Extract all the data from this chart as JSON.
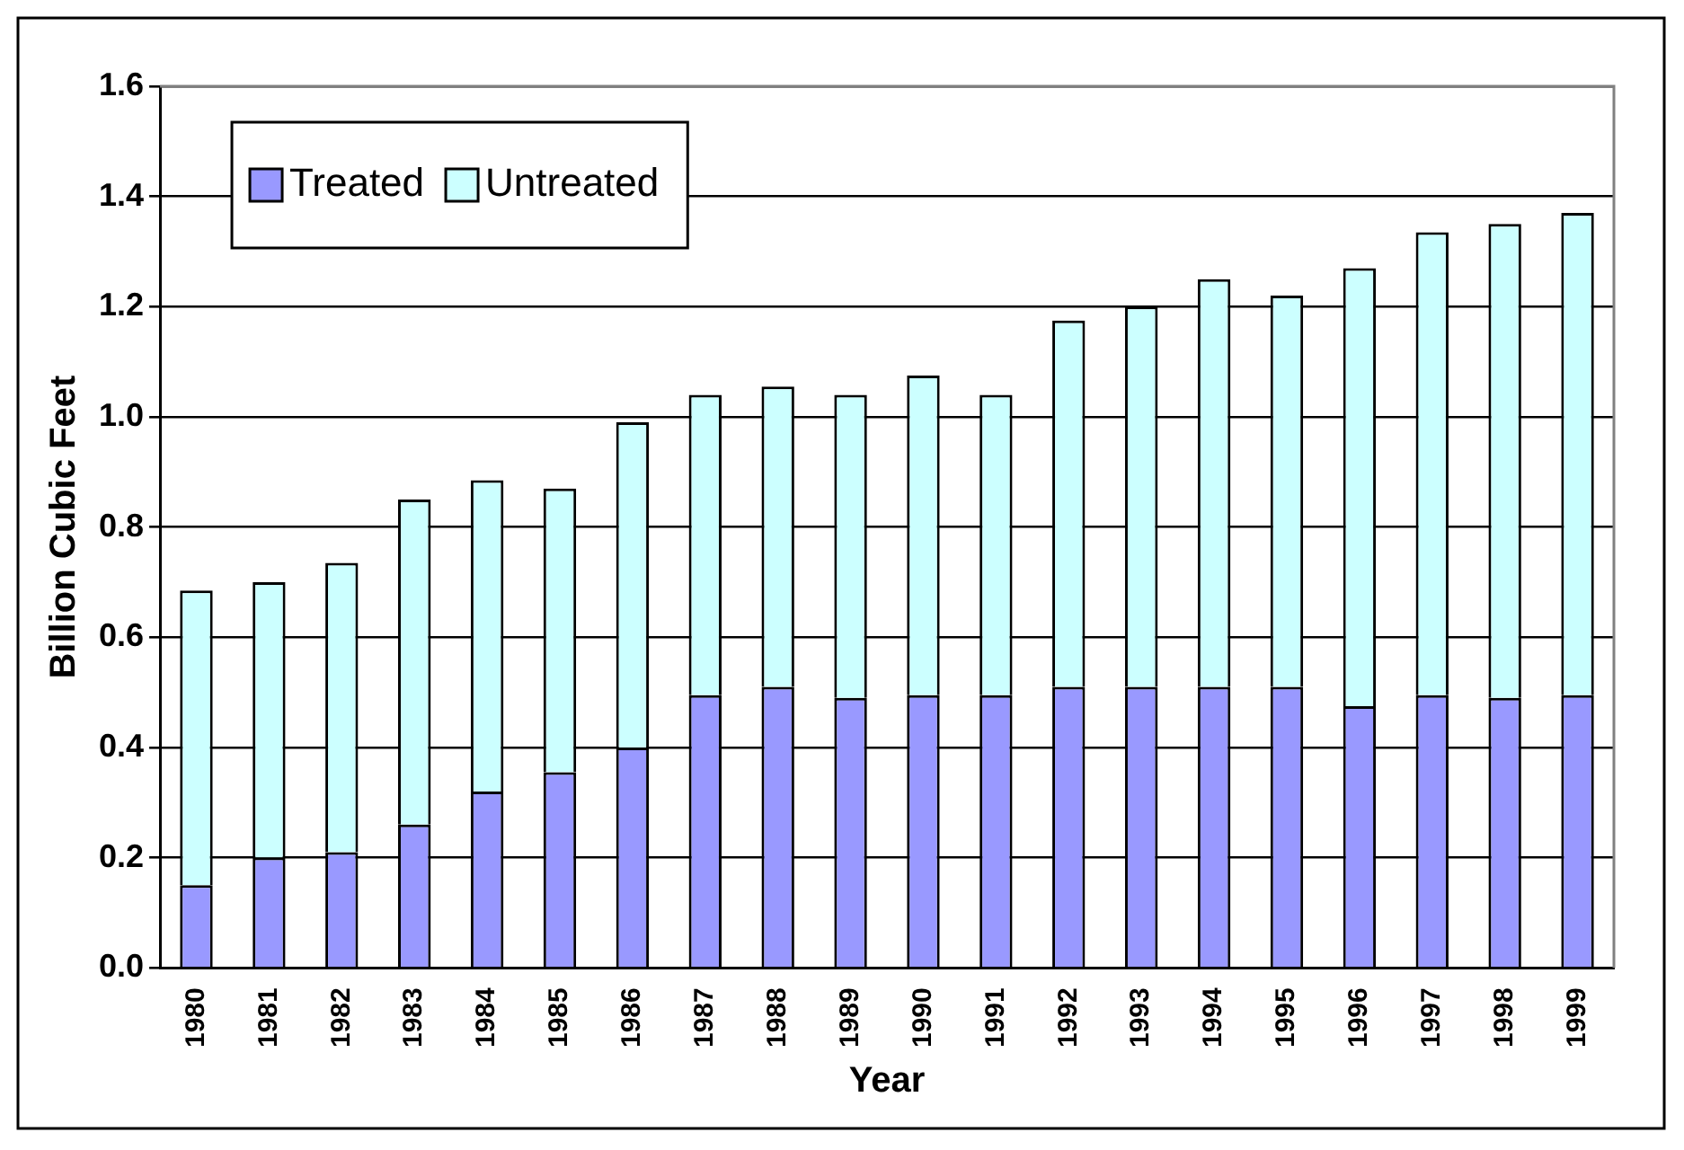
{
  "chart_data": {
    "type": "bar",
    "stacked": true,
    "xlabel": "Year",
    "ylabel": "Billion Cubic Feet",
    "categories": [
      "1980",
      "1981",
      "1982",
      "1983",
      "1984",
      "1985",
      "1986",
      "1987",
      "1988",
      "1989",
      "1990",
      "1991",
      "1992",
      "1993",
      "1994",
      "1995",
      "1996",
      "1997",
      "1998",
      "1999"
    ],
    "series": [
      {
        "name": "Treated",
        "color": "#9999ff",
        "values": [
          0.15,
          0.2,
          0.21,
          0.26,
          0.32,
          0.355,
          0.4,
          0.495,
          0.51,
          0.49,
          0.495,
          0.495,
          0.51,
          0.51,
          0.51,
          0.51,
          0.475,
          0.495,
          0.49,
          0.495
        ]
      },
      {
        "name": "Untreated",
        "color": "#ccffff",
        "values": [
          0.535,
          0.5,
          0.525,
          0.59,
          0.565,
          0.515,
          0.59,
          0.545,
          0.545,
          0.55,
          0.58,
          0.545,
          0.665,
          0.69,
          0.74,
          0.71,
          0.795,
          0.84,
          0.86,
          0.875
        ]
      }
    ],
    "ylim": [
      0,
      1.6
    ],
    "yticks": [
      {
        "value": 0,
        "label": "0.0"
      },
      {
        "value": 0.2,
        "label": "0.2"
      },
      {
        "value": 0.4,
        "label": "0.4"
      },
      {
        "value": 0.6,
        "label": "0.6"
      },
      {
        "value": 0.8,
        "label": "0.8"
      },
      {
        "value": 1,
        "label": "1.0"
      },
      {
        "value": 1.2,
        "label": "1.2"
      },
      {
        "value": 1.4,
        "label": "1.4"
      },
      {
        "value": 1.6,
        "label": "1.6"
      }
    ],
    "grid": "y",
    "legend": "top left"
  }
}
